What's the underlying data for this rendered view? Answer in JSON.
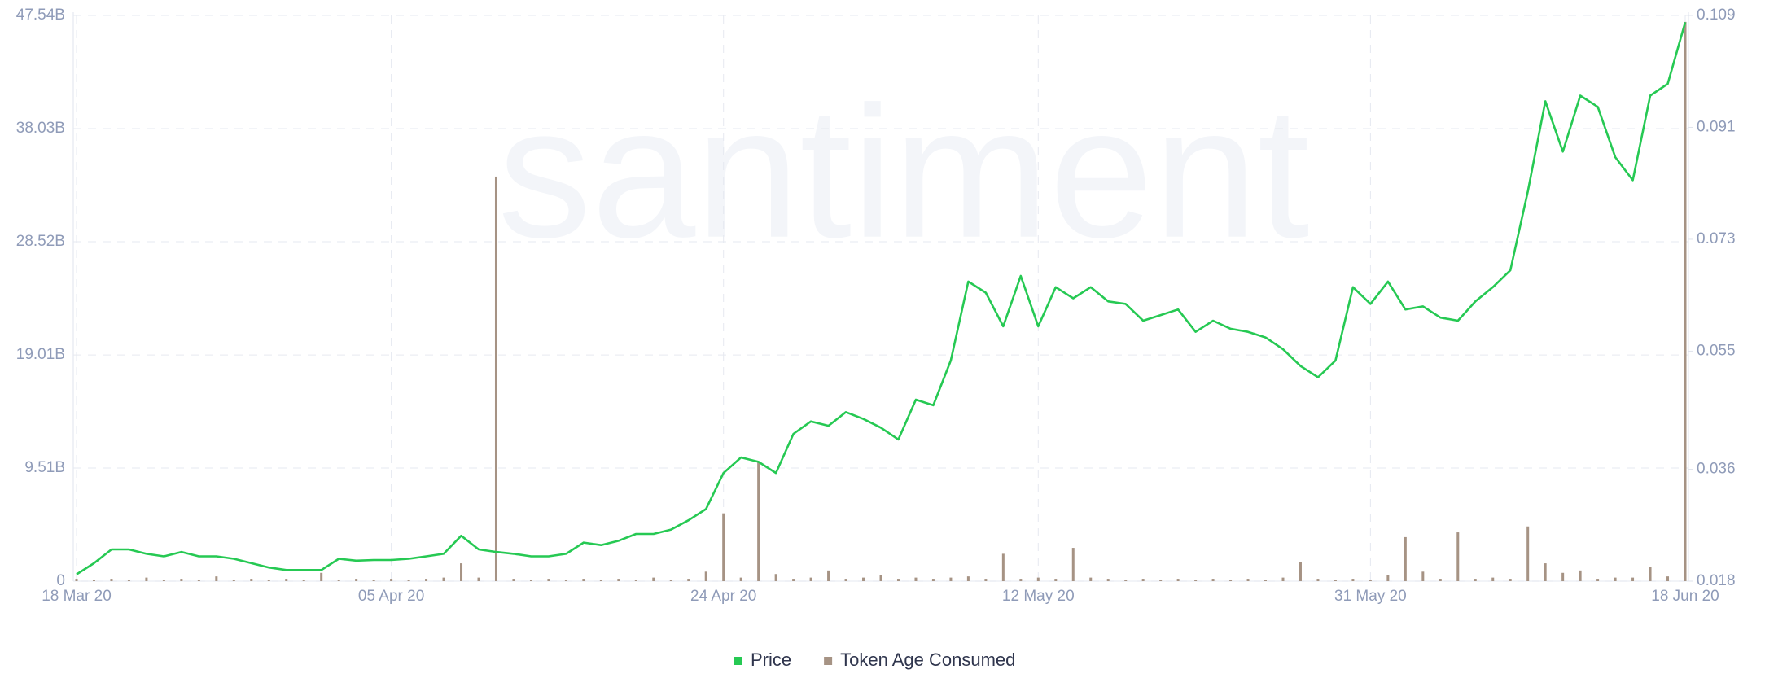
{
  "chart_data": {
    "type": "combo",
    "watermark": "santiment",
    "x": [
      "2020-03-18",
      "2020-03-19",
      "2020-03-20",
      "2020-03-21",
      "2020-03-22",
      "2020-03-23",
      "2020-03-24",
      "2020-03-25",
      "2020-03-26",
      "2020-03-27",
      "2020-03-28",
      "2020-03-29",
      "2020-03-30",
      "2020-03-31",
      "2020-04-01",
      "2020-04-02",
      "2020-04-03",
      "2020-04-04",
      "2020-04-05",
      "2020-04-06",
      "2020-04-07",
      "2020-04-08",
      "2020-04-09",
      "2020-04-10",
      "2020-04-11",
      "2020-04-12",
      "2020-04-13",
      "2020-04-14",
      "2020-04-15",
      "2020-04-16",
      "2020-04-17",
      "2020-04-18",
      "2020-04-19",
      "2020-04-20",
      "2020-04-21",
      "2020-04-22",
      "2020-04-23",
      "2020-04-24",
      "2020-04-25",
      "2020-04-26",
      "2020-04-27",
      "2020-04-28",
      "2020-04-29",
      "2020-04-30",
      "2020-05-01",
      "2020-05-02",
      "2020-05-03",
      "2020-05-04",
      "2020-05-05",
      "2020-05-06",
      "2020-05-07",
      "2020-05-08",
      "2020-05-09",
      "2020-05-10",
      "2020-05-11",
      "2020-05-12",
      "2020-05-13",
      "2020-05-14",
      "2020-05-15",
      "2020-05-16",
      "2020-05-17",
      "2020-05-18",
      "2020-05-19",
      "2020-05-20",
      "2020-05-21",
      "2020-05-22",
      "2020-05-23",
      "2020-05-24",
      "2020-05-25",
      "2020-05-26",
      "2020-05-27",
      "2020-05-28",
      "2020-05-29",
      "2020-05-30",
      "2020-05-31",
      "2020-06-01",
      "2020-06-02",
      "2020-06-03",
      "2020-06-04",
      "2020-06-05",
      "2020-06-06",
      "2020-06-07",
      "2020-06-08",
      "2020-06-09",
      "2020-06-10",
      "2020-06-11",
      "2020-06-12",
      "2020-06-13",
      "2020-06-14",
      "2020-06-15",
      "2020-06-16",
      "2020-06-17",
      "2020-06-18"
    ],
    "xlim": [
      "2020-03-18",
      "2020-06-18"
    ],
    "xticks": [
      {
        "value": "2020-03-18",
        "label": "18 Mar 20"
      },
      {
        "value": "2020-04-05",
        "label": "05 Apr 20"
      },
      {
        "value": "2020-04-24",
        "label": "24 Apr 20"
      },
      {
        "value": "2020-05-12",
        "label": "12 May 20"
      },
      {
        "value": "2020-05-31",
        "label": "31 May 20"
      },
      {
        "value": "2020-06-18",
        "label": "18 Jun 20"
      }
    ],
    "ylim": [
      0,
      47.54
    ],
    "yticks": [
      0,
      {
        "value": 9.51,
        "label": "9.51B"
      },
      {
        "value": 19.01,
        "label": "19.01B"
      },
      {
        "value": 28.52,
        "label": "28.52B"
      },
      {
        "value": 38.03,
        "label": "38.03B"
      },
      {
        "value": 47.54,
        "label": "47.54B"
      }
    ],
    "y2lim": [
      0.018,
      0.109
    ],
    "y2ticks": [
      0.018,
      0.036,
      0.055,
      0.073,
      0.091,
      0.109
    ],
    "grid": true,
    "legend": "bottom",
    "series": [
      {
        "name": "Price",
        "type": "line",
        "axis": "y2",
        "color": "#26c953",
        "values": [
          0.0191,
          0.0209,
          0.0231,
          0.0231,
          0.0224,
          0.022,
          0.0227,
          0.022,
          0.022,
          0.0216,
          0.0209,
          0.0202,
          0.0198,
          0.0198,
          0.0198,
          0.0216,
          0.0213,
          0.0214,
          0.0214,
          0.0216,
          0.022,
          0.0224,
          0.0253,
          0.0231,
          0.0227,
          0.0224,
          0.022,
          0.022,
          0.0224,
          0.0242,
          0.0238,
          0.0245,
          0.0256,
          0.0256,
          0.0263,
          0.0278,
          0.0296,
          0.0354,
          0.0379,
          0.0372,
          0.0354,
          0.0417,
          0.0437,
          0.043,
          0.0452,
          0.0441,
          0.0427,
          0.0408,
          0.0472,
          0.0463,
          0.0535,
          0.0662,
          0.0644,
          0.059,
          0.0671,
          0.059,
          0.0653,
          0.0635,
          0.0653,
          0.063,
          0.0626,
          0.0599,
          0.0608,
          0.0617,
          0.0581,
          0.0599,
          0.0586,
          0.0581,
          0.0572,
          0.0553,
          0.0526,
          0.0508,
          0.0535,
          0.0653,
          0.0626,
          0.0662,
          0.0617,
          0.0622,
          0.0604,
          0.0599,
          0.063,
          0.0653,
          0.068,
          0.0807,
          0.0952,
          0.0871,
          0.0961,
          0.0943,
          0.0862,
          0.0825,
          0.0961,
          0.098,
          0.1079
        ]
      },
      {
        "name": "Token Age Consumed",
        "type": "bar",
        "color": "#a69384",
        "values": [
          0.2,
          0.1,
          0.2,
          0.1,
          0.3,
          0.1,
          0.2,
          0.1,
          0.4,
          0.1,
          0.2,
          0.1,
          0.2,
          0.1,
          0.7,
          0.1,
          0.2,
          0.1,
          0.2,
          0.1,
          0.2,
          0.3,
          1.5,
          0.3,
          34.0,
          0.2,
          0.1,
          0.2,
          0.1,
          0.2,
          0.1,
          0.2,
          0.1,
          0.3,
          0.1,
          0.2,
          0.8,
          5.7,
          0.3,
          10.0,
          0.6,
          0.2,
          0.3,
          0.9,
          0.2,
          0.3,
          0.5,
          0.2,
          0.3,
          0.2,
          0.3,
          0.4,
          0.2,
          2.3,
          0.2,
          0.3,
          0.2,
          2.8,
          0.3,
          0.2,
          0.1,
          0.2,
          0.1,
          0.2,
          0.1,
          0.2,
          0.1,
          0.2,
          0.1,
          0.3,
          1.6,
          0.2,
          0.1,
          0.2,
          0.1,
          0.5,
          3.7,
          0.8,
          0.2,
          4.1,
          0.2,
          0.3,
          0.2,
          4.6,
          1.5,
          0.7,
          0.9,
          0.2,
          0.3,
          0.3,
          1.2,
          0.4,
          47.0
        ]
      }
    ]
  }
}
